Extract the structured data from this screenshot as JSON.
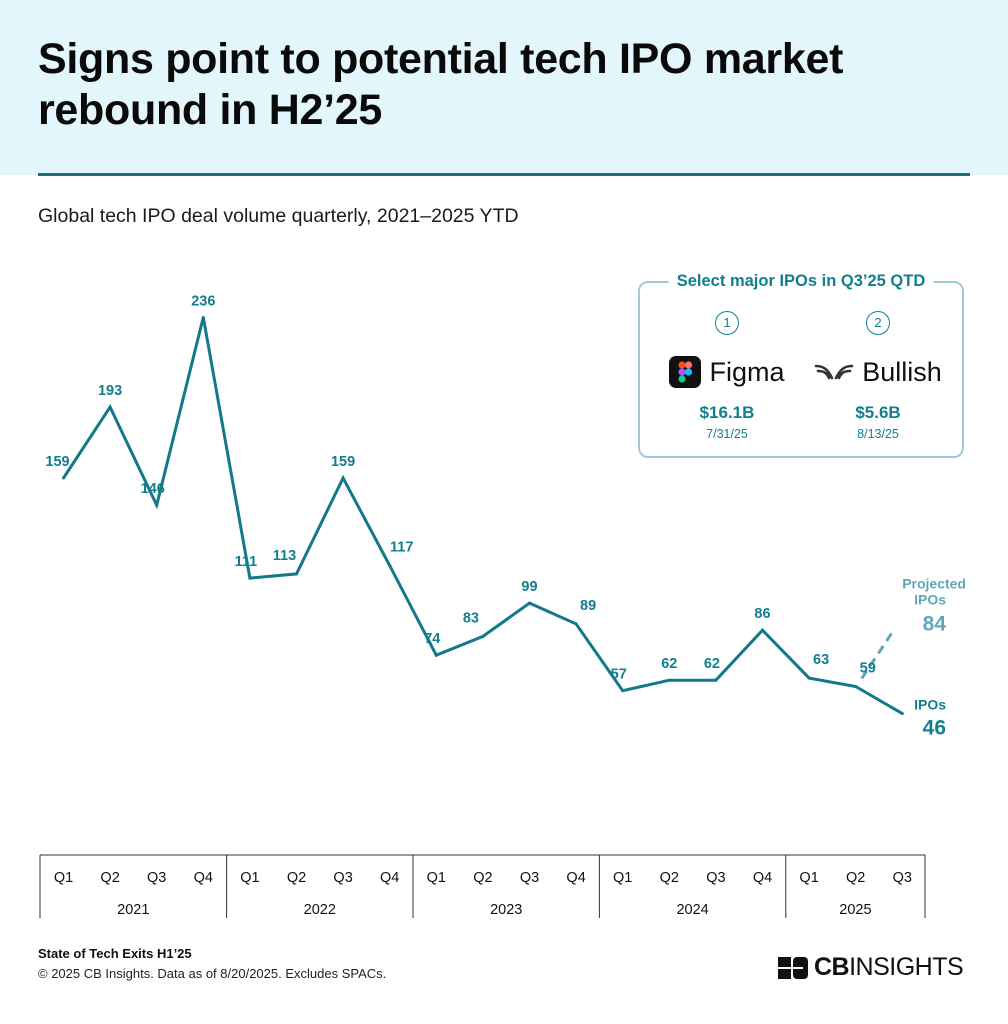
{
  "header": {
    "title_line1": "Signs point to potential tech IPO market",
    "title_line2": "rebound in H2’25",
    "subtitle": "Global tech IPO deal volume quarterly, 2021–2025 YTD"
  },
  "callout": {
    "title": "Select major IPOs in Q3’25 QTD",
    "items": [
      {
        "number": "1",
        "name": "Figma",
        "logo_icon": "figma-logo-icon",
        "value": "$16.1B",
        "date": "7/31/25"
      },
      {
        "number": "2",
        "name": "Bullish",
        "logo_icon": "bullish-logo-icon",
        "value": "$5.6B",
        "date": "8/13/25"
      }
    ]
  },
  "chart_data": {
    "type": "line",
    "title": "Global tech IPO deal volume quarterly, 2021–2025 YTD",
    "categories": [
      "Q1",
      "Q2",
      "Q3",
      "Q4",
      "Q1",
      "Q2",
      "Q3",
      "Q4",
      "Q1",
      "Q2",
      "Q3",
      "Q4",
      "Q1",
      "Q2",
      "Q3",
      "Q4",
      "Q1",
      "Q2",
      "Q3"
    ],
    "years": [
      {
        "label": "2021",
        "quarters": 4
      },
      {
        "label": "2022",
        "quarters": 4
      },
      {
        "label": "2023",
        "quarters": 4
      },
      {
        "label": "2024",
        "quarters": 4
      },
      {
        "label": "2025",
        "quarters": 3
      }
    ],
    "series": [
      {
        "name": "IPOs",
        "values": [
          159,
          193,
          146,
          236,
          111,
          113,
          159,
          117,
          74,
          83,
          99,
          89,
          57,
          62,
          62,
          86,
          63,
          59,
          46
        ],
        "color": "#12788a"
      },
      {
        "name": "Projected IPOs",
        "projected_point": {
          "x": "Q3",
          "year": "2025",
          "value": 84
        },
        "color": "#5fa9b7",
        "dashed": true
      }
    ],
    "end_labels": {
      "ipos_name": "IPOs",
      "ipos_value": "46",
      "projected_name_line1": "Projected",
      "projected_name_line2": "IPOs",
      "projected_value": "84"
    },
    "accent_color": "#117f90"
  },
  "footer": {
    "title": "State of Tech Exits H1’25",
    "note": "© 2025 CB Insights. Data as of 8/20/2025. Excludes SPACs.",
    "brand_bold": "CB",
    "brand_rest": "INSIGHTS"
  }
}
